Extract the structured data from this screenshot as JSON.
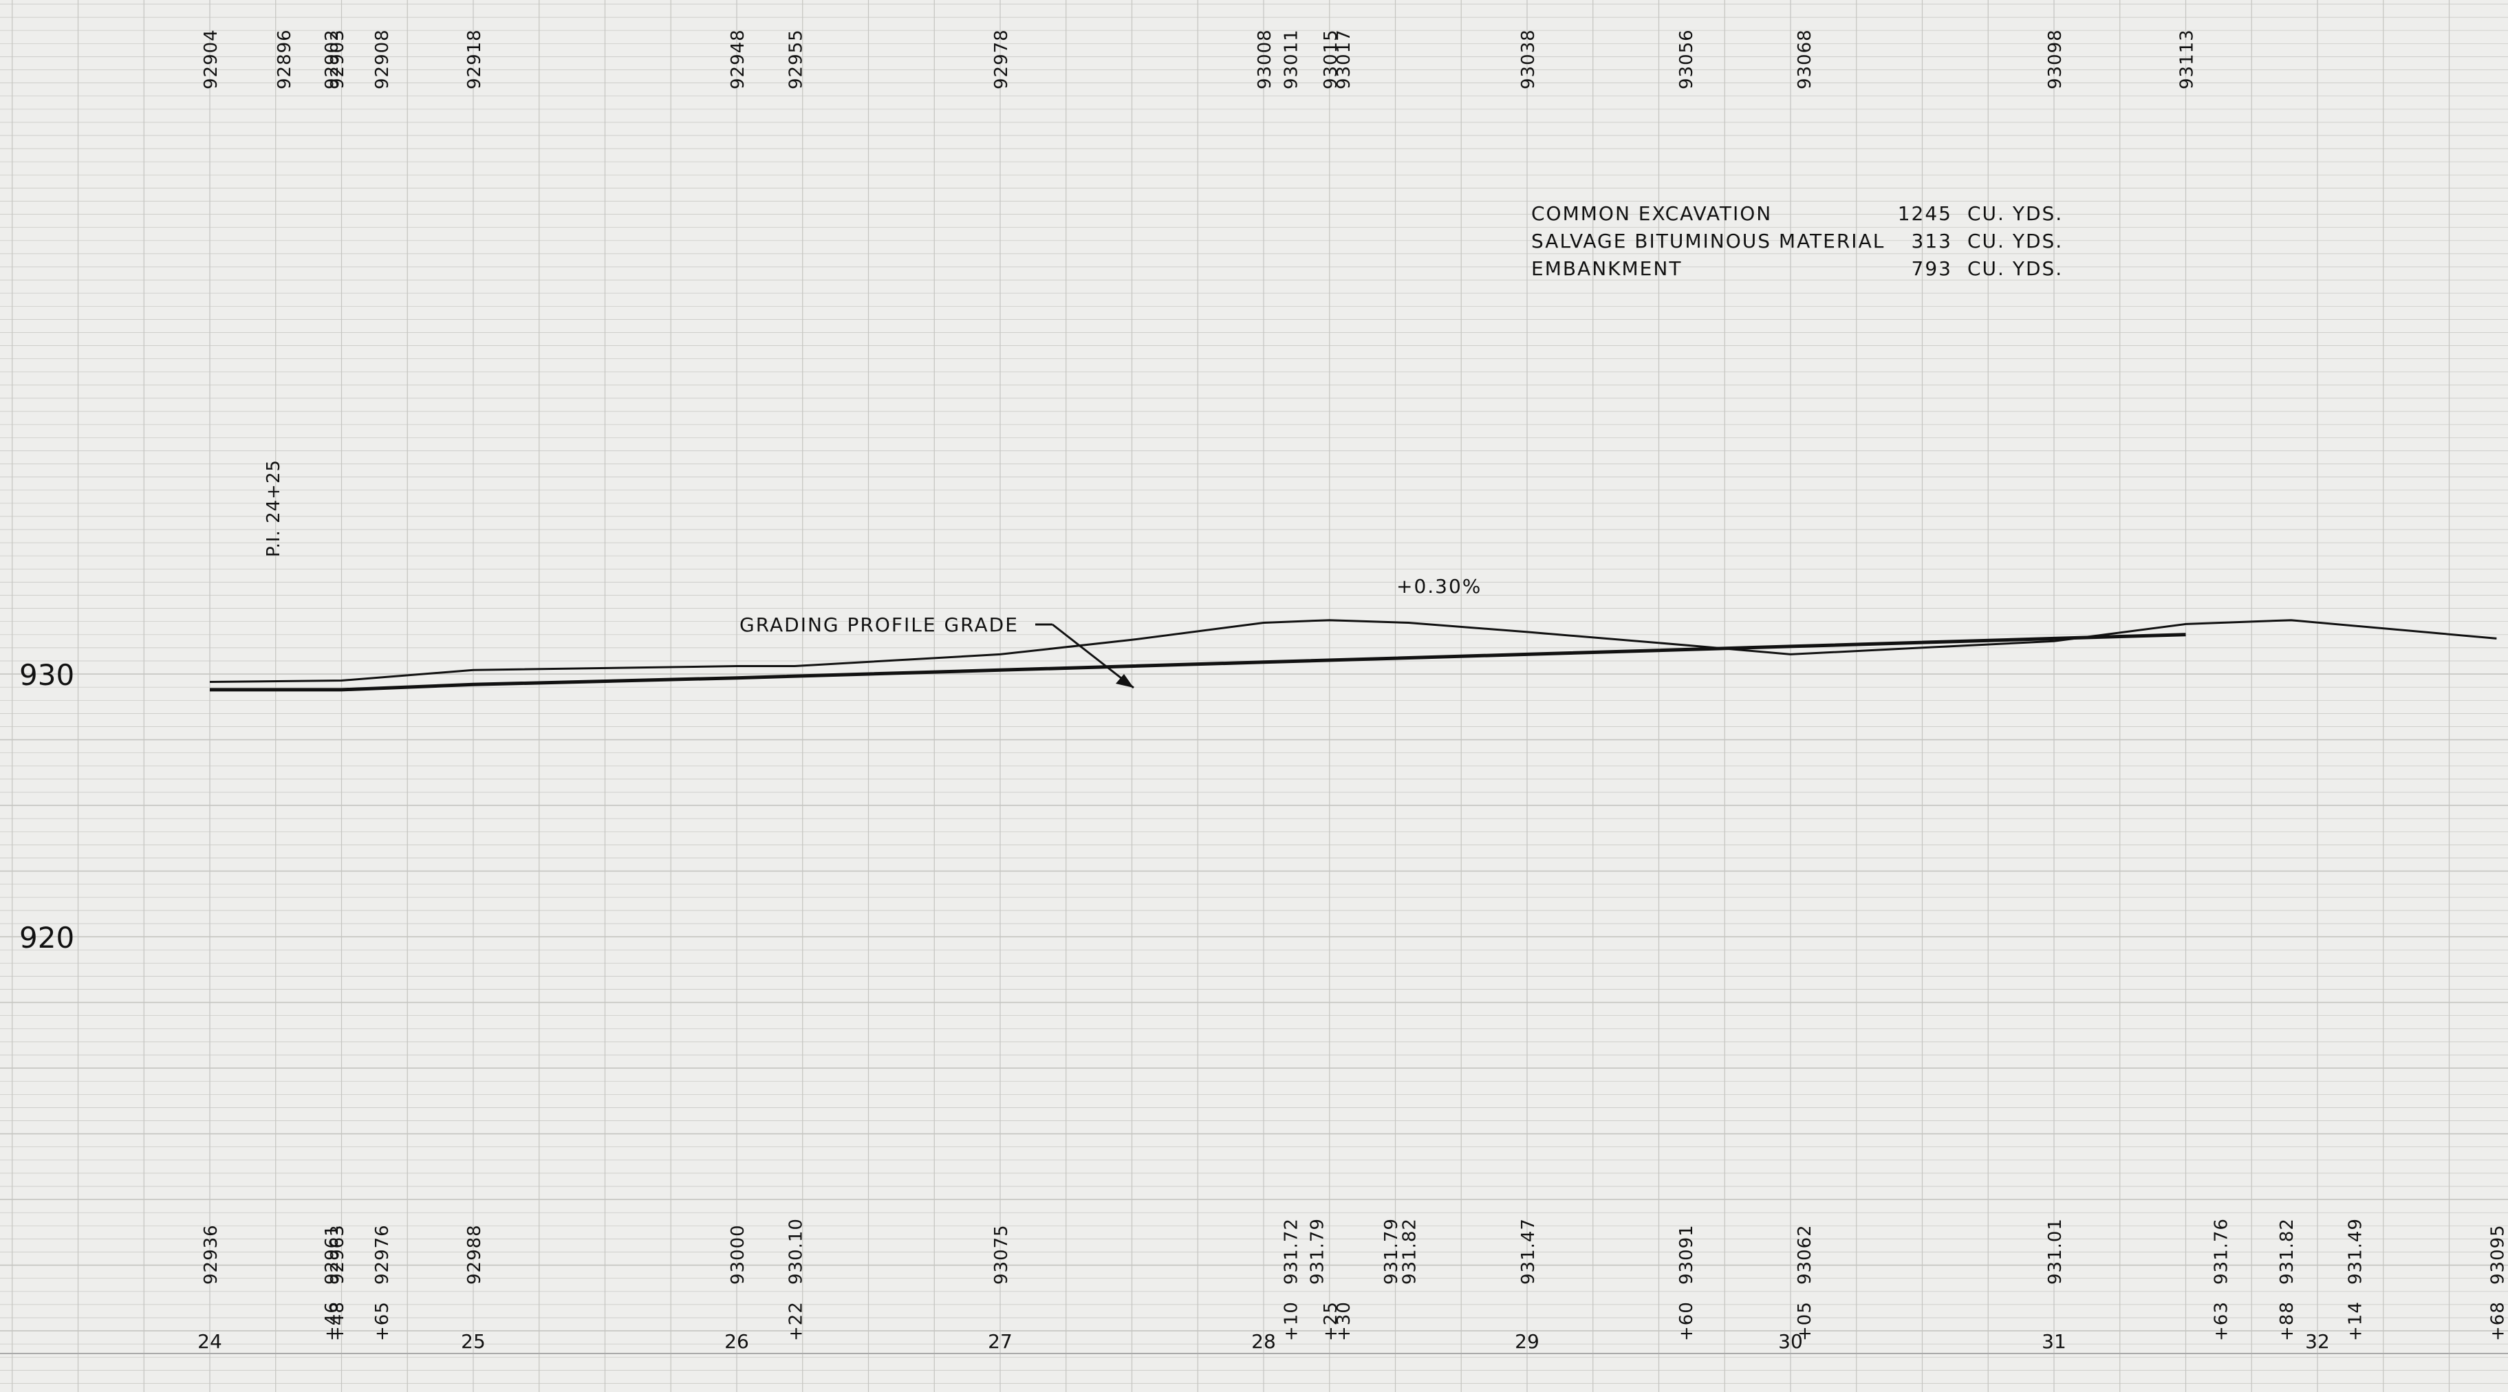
{
  "elevation_labels": [
    "930",
    "920"
  ],
  "top_elevations": [
    {
      "station": 24.0,
      "text": "92904"
    },
    {
      "station": 24.28,
      "text": "92896"
    },
    {
      "station": 24.46,
      "text": "92902"
    },
    {
      "station": 24.48,
      "text": "92903"
    },
    {
      "station": 24.65,
      "text": "92908"
    },
    {
      "station": 25.0,
      "text": "92918"
    },
    {
      "station": 26.0,
      "text": "92948"
    },
    {
      "station": 26.22,
      "text": "92955"
    },
    {
      "station": 27.0,
      "text": "92978"
    },
    {
      "station": 28.0,
      "text": "93008"
    },
    {
      "station": 28.1,
      "text": "93011"
    },
    {
      "station": 28.25,
      "text": "93015"
    },
    {
      "station": 28.3,
      "text": "93017"
    },
    {
      "station": 29.0,
      "text": "93038"
    },
    {
      "station": 29.6,
      "text": "93056"
    },
    {
      "station": 30.05,
      "text": "93068"
    },
    {
      "station": 31.0,
      "text": "93098"
    },
    {
      "station": 31.5,
      "text": "93113"
    }
  ],
  "bottom_elevations": [
    {
      "station": 24.0,
      "text": "92936"
    },
    {
      "station": 24.46,
      "text": "92961"
    },
    {
      "station": 24.48,
      "text": "92963"
    },
    {
      "station": 24.65,
      "text": "92976"
    },
    {
      "station": 25.0,
      "text": "92988"
    },
    {
      "station": 26.0,
      "text": "93000"
    },
    {
      "station": 26.22,
      "text": "930.10"
    },
    {
      "station": 27.0,
      "text": "93075"
    },
    {
      "station": 28.1,
      "text": "931.72"
    },
    {
      "station": 28.2,
      "text": "931.79"
    },
    {
      "station": 28.48,
      "text": "931.79"
    },
    {
      "station": 28.55,
      "text": "931.82"
    },
    {
      "station": 29.0,
      "text": "931.47"
    },
    {
      "station": 29.6,
      "text": "93091"
    },
    {
      "station": 30.05,
      "text": "93062"
    },
    {
      "station": 31.0,
      "text": "931.01"
    },
    {
      "station": 31.63,
      "text": "931.76"
    },
    {
      "station": 31.88,
      "text": "931.82"
    },
    {
      "station": 32.14,
      "text": "931.49"
    },
    {
      "station": 32.68,
      "text": "93095"
    }
  ],
  "plus_labels": [
    {
      "station": 24.46,
      "text": "+46"
    },
    {
      "station": 24.48,
      "text": "+48"
    },
    {
      "station": 24.65,
      "text": "+65"
    },
    {
      "station": 26.22,
      "text": "+22"
    },
    {
      "station": 28.1,
      "text": "+10"
    },
    {
      "station": 28.25,
      "text": "+25"
    },
    {
      "station": 28.3,
      "text": "+30"
    },
    {
      "station": 29.6,
      "text": "+60"
    },
    {
      "station": 30.05,
      "text": "+05"
    },
    {
      "station": 31.63,
      "text": "+63"
    },
    {
      "station": 31.88,
      "text": "+88"
    },
    {
      "station": 32.14,
      "text": "+14"
    },
    {
      "station": 32.68,
      "text": "+68"
    }
  ],
  "stations": [
    "24",
    "25",
    "26",
    "27",
    "28",
    "29",
    "30",
    "31",
    "32"
  ],
  "pi_label": "P.I. 24+25",
  "grade_label": "GRADING PROFILE GRADE",
  "slope_label": "+0.30%",
  "quantities": [
    {
      "item": "COMMON EXCAVATION",
      "qty": "1245",
      "unit": "CU. YDS."
    },
    {
      "item": "SALVAGE BITUMINOUS MATERIAL",
      "qty": "313",
      "unit": "CU. YDS."
    },
    {
      "item": "EMBANKMENT",
      "qty": "793",
      "unit": "CU. YDS."
    }
  ],
  "profiles": {
    "grade_line": [
      [
        24.0,
        929.4
      ],
      [
        24.5,
        929.4
      ],
      [
        25.0,
        929.6
      ],
      [
        26.0,
        929.85
      ],
      [
        27.0,
        930.15
      ],
      [
        28.0,
        930.45
      ],
      [
        29.0,
        930.75
      ],
      [
        30.0,
        931.05
      ],
      [
        31.0,
        931.35
      ],
      [
        31.5,
        931.5
      ]
    ],
    "ground_line": [
      [
        24.0,
        929.7
      ],
      [
        24.5,
        929.75
      ],
      [
        25.0,
        930.15
      ],
      [
        26.0,
        930.3
      ],
      [
        26.22,
        930.3
      ],
      [
        27.0,
        930.75
      ],
      [
        27.5,
        931.3
      ],
      [
        28.0,
        931.95
      ],
      [
        28.25,
        932.05
      ],
      [
        28.55,
        931.95
      ],
      [
        29.0,
        931.6
      ],
      [
        29.6,
        931.1
      ],
      [
        30.0,
        930.75
      ],
      [
        30.5,
        931.0
      ],
      [
        31.0,
        931.25
      ],
      [
        31.5,
        931.9
      ],
      [
        31.9,
        932.05
      ],
      [
        32.68,
        931.35
      ]
    ]
  },
  "colors": {
    "ink": "#111111",
    "grid": "#c4c4c0",
    "paper": "#eeeeec"
  }
}
